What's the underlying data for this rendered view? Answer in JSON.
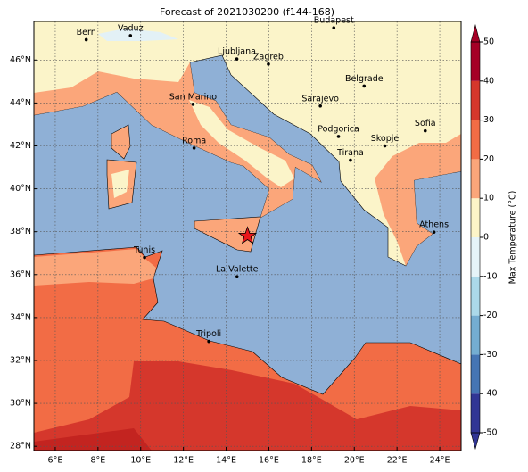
{
  "title": "Forecast of 2021030200 (f144-168)",
  "map": {
    "xlim": [
      5,
      25
    ],
    "ylim": [
      27.8,
      47.8
    ],
    "xticks": [
      {
        "value": 6,
        "label": "6°E"
      },
      {
        "value": 8,
        "label": "8°E"
      },
      {
        "value": 10,
        "label": "10°E"
      },
      {
        "value": 12,
        "label": "12°E"
      },
      {
        "value": 14,
        "label": "14°E"
      },
      {
        "value": 16,
        "label": "16°E"
      },
      {
        "value": 18,
        "label": "18°E"
      },
      {
        "value": 20,
        "label": "20°E"
      },
      {
        "value": 22,
        "label": "22°E"
      },
      {
        "value": 24,
        "label": "24°E"
      }
    ],
    "yticks": [
      {
        "value": 28,
        "label": "28°N"
      },
      {
        "value": 30,
        "label": "30°N"
      },
      {
        "value": 32,
        "label": "32°N"
      },
      {
        "value": 34,
        "label": "34°N"
      },
      {
        "value": 36,
        "label": "36°N"
      },
      {
        "value": 38,
        "label": "38°N"
      },
      {
        "value": 40,
        "label": "40°N"
      },
      {
        "value": 42,
        "label": "42°N"
      },
      {
        "value": 44,
        "label": "44°N"
      },
      {
        "value": 46,
        "label": "46°N"
      }
    ],
    "grid": true,
    "cities": [
      {
        "name": "Bern",
        "lon": 7.45,
        "lat": 46.95
      },
      {
        "name": "Vaduz",
        "lon": 9.52,
        "lat": 47.14
      },
      {
        "name": "Budapest",
        "lon": 19.04,
        "lat": 47.5
      },
      {
        "name": "Ljubljana",
        "lon": 14.5,
        "lat": 46.05
      },
      {
        "name": "Zagreb",
        "lon": 15.98,
        "lat": 45.81
      },
      {
        "name": "Belgrade",
        "lon": 20.46,
        "lat": 44.79
      },
      {
        "name": "San Marino",
        "lon": 12.45,
        "lat": 43.94
      },
      {
        "name": "Sarajevo",
        "lon": 18.41,
        "lat": 43.86
      },
      {
        "name": "Sofia",
        "lon": 23.32,
        "lat": 42.7
      },
      {
        "name": "Podgorica",
        "lon": 19.26,
        "lat": 42.44
      },
      {
        "name": "Skopje",
        "lon": 21.43,
        "lat": 42.0
      },
      {
        "name": "Roma",
        "lon": 12.5,
        "lat": 41.9
      },
      {
        "name": "Tirana",
        "lon": 19.82,
        "lat": 41.33
      },
      {
        "name": "Athens",
        "lon": 23.73,
        "lat": 37.98
      },
      {
        "name": "Tunis",
        "lon": 10.18,
        "lat": 36.8
      },
      {
        "name": "La Valette",
        "lon": 14.51,
        "lat": 35.9
      },
      {
        "name": "Tripoli",
        "lon": 13.19,
        "lat": 32.89
      }
    ],
    "marker": {
      "lon": 15,
      "lat": 37.8
    }
  },
  "colorbar": {
    "label": "Max Temperature (°C)",
    "lim": [
      -50,
      50
    ],
    "ticks": [
      -50,
      -40,
      -30,
      -20,
      -10,
      0,
      10,
      20,
      30,
      40,
      50
    ],
    "colors": [
      "#313695",
      "#4575b4",
      "#74add1",
      "#abd9e9",
      "#e6f4f8",
      "#fdf5c8",
      "#fba67a",
      "#f26c45",
      "#d5372c",
      "#a50026"
    ]
  }
}
